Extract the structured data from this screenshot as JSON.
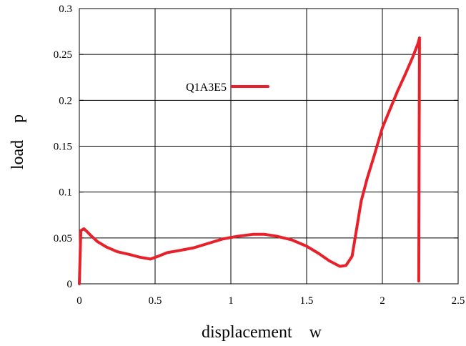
{
  "chart_data": {
    "type": "line",
    "xlabel": "displacement    w",
    "ylabel": "load    p",
    "xlim": [
      0,
      2.5
    ],
    "ylim": [
      0,
      0.3
    ],
    "x_ticks": [
      0,
      0.5,
      1,
      1.5,
      2,
      2.5
    ],
    "x_tick_labels": [
      "0",
      "0.5",
      "1",
      "1.5",
      "2",
      "2.5"
    ],
    "y_ticks": [
      0,
      0.05,
      0.1,
      0.15,
      0.2,
      0.25,
      0.3
    ],
    "y_tick_labels": [
      "0",
      "0.05",
      "0.1",
      "0.15",
      "0.2",
      "0.25",
      "0.3"
    ],
    "grid": true,
    "legend_placement": "upper-left",
    "series": [
      {
        "name": "Q1A3E5",
        "color": "#e8202a",
        "x": [
          0.0,
          0.01,
          0.03,
          0.05,
          0.08,
          0.12,
          0.18,
          0.25,
          0.33,
          0.4,
          0.47,
          0.52,
          0.58,
          0.65,
          0.75,
          0.85,
          0.95,
          1.05,
          1.15,
          1.22,
          1.3,
          1.4,
          1.5,
          1.58,
          1.65,
          1.72,
          1.76,
          1.8,
          1.83,
          1.86,
          1.9,
          1.95,
          2.0,
          2.05,
          2.1,
          2.15,
          2.2,
          2.235,
          2.245,
          2.24
        ],
        "y": [
          0.0,
          0.058,
          0.06,
          0.057,
          0.052,
          0.046,
          0.04,
          0.035,
          0.032,
          0.029,
          0.027,
          0.03,
          0.034,
          0.036,
          0.039,
          0.044,
          0.049,
          0.052,
          0.054,
          0.054,
          0.052,
          0.048,
          0.041,
          0.033,
          0.025,
          0.019,
          0.02,
          0.03,
          0.06,
          0.09,
          0.115,
          0.142,
          0.17,
          0.19,
          0.21,
          0.228,
          0.247,
          0.262,
          0.268,
          0.003
        ]
      }
    ]
  }
}
